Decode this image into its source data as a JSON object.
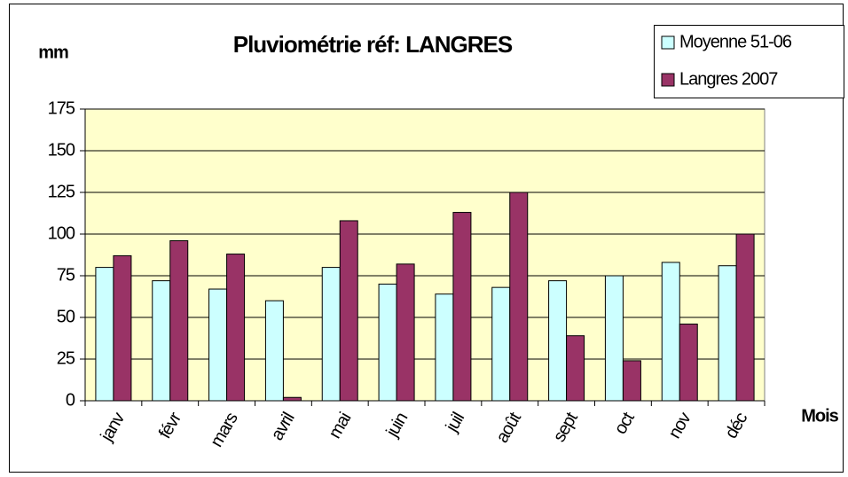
{
  "chart_data": {
    "type": "bar",
    "title": "Pluviométrie réf: LANGRES",
    "y_label": "mm",
    "x_label": "Mois",
    "categories": [
      "janv",
      "févr",
      "mars",
      "avril",
      "mai",
      "juin",
      "juil",
      "août",
      "sept",
      "oct",
      "nov",
      "déc"
    ],
    "series": [
      {
        "name": "Moyenne 51-06",
        "color": "#ccffff",
        "values": [
          80,
          72,
          67,
          60,
          80,
          70,
          64,
          68,
          72,
          75,
          83,
          81
        ]
      },
      {
        "name": "Langres 2007",
        "color": "#993366",
        "values": [
          87,
          96,
          88,
          2,
          108,
          82,
          113,
          125,
          39,
          24,
          46,
          100
        ]
      }
    ],
    "ylim": [
      0,
      175
    ],
    "yticks": [
      0,
      25,
      50,
      75,
      100,
      125,
      150,
      175
    ],
    "grid": true,
    "legend": "top-right",
    "plot_background": "#ffffcc"
  }
}
